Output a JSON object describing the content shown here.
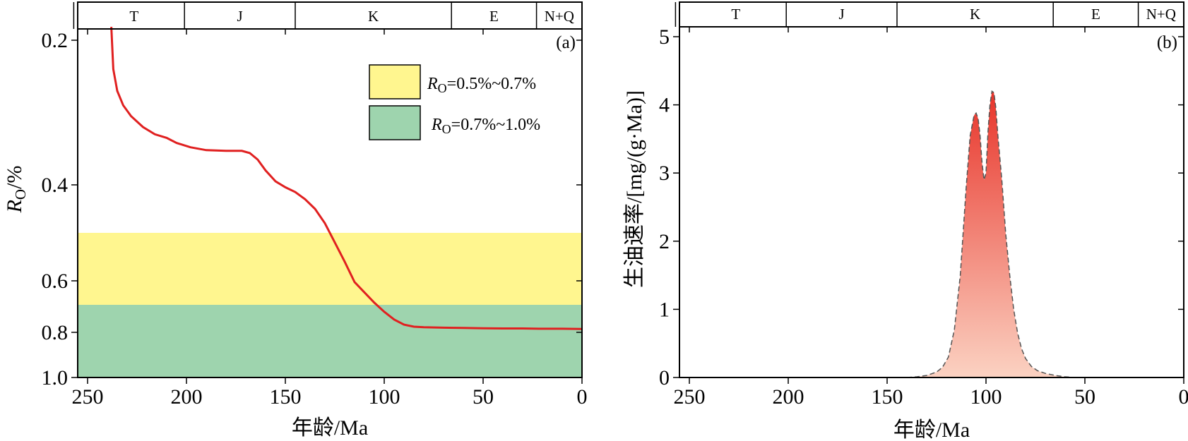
{
  "chart_data": [
    {
      "panel_label": "(a)",
      "type": "line",
      "xlabel": "年龄/Ma",
      "ylabel": "Ro/%",
      "ylabel_main": "R",
      "ylabel_sub": "O",
      "ylabel_rest": "/%",
      "xlim": [
        255,
        0
      ],
      "ylim_scale_positions": [
        [
          0.2,
          0.2
        ],
        [
          0.4,
          0.4
        ],
        [
          0.6,
          0.6
        ],
        [
          0.8,
          0.8
        ],
        [
          1.0,
          0.92
        ]
      ],
      "xticks": [
        250,
        200,
        150,
        100,
        50,
        0
      ],
      "xtick_labels": [
        "250",
        "200",
        "150",
        "100",
        "50",
        "0"
      ],
      "yticks": [
        0.2,
        0.4,
        0.6,
        0.8,
        1.0
      ],
      "ytick_labels": [
        "0.2",
        "0.4",
        "0.6",
        "0.8",
        "1.0"
      ],
      "periods": [
        {
          "label": "T",
          "start": 252,
          "end": 201
        },
        {
          "label": "J",
          "start": 201,
          "end": 145
        },
        {
          "label": "K",
          "start": 145,
          "end": 66
        },
        {
          "label": "E",
          "start": 66,
          "end": 23
        },
        {
          "label": "N+Q",
          "start": 23,
          "end": 0
        }
      ],
      "period_bar_left_edge": 257,
      "bands": [
        {
          "name": "Ro=0.5%~0.7%",
          "name_main": "R",
          "name_sub": "O",
          "name_rest": "=0.5%~0.7%",
          "y_from": 0.5,
          "y_to": 0.7,
          "color": "#fff68f"
        },
        {
          "name": "Ro=0.7%~1.0%",
          "name_main": "R",
          "name_sub": "O",
          "name_rest": "=0.7%~1.0%",
          "y_from": 0.7,
          "y_to": 1.0,
          "color": "#9ed4ae"
        }
      ],
      "line_color": "#e02020",
      "series": [
        {
          "x": [
            238,
            237,
            235,
            232,
            228,
            222,
            216,
            210,
            205,
            198,
            190,
            180,
            172,
            168,
            164,
            160,
            155,
            150,
            145,
            140,
            135,
            130,
            125,
            120,
            115,
            110,
            105,
            100,
            95,
            90,
            85,
            80,
            70,
            60,
            50,
            40,
            30,
            20,
            10,
            0
          ],
          "y": [
            0.18,
            0.24,
            0.27,
            0.29,
            0.305,
            0.32,
            0.33,
            0.335,
            0.342,
            0.348,
            0.352,
            0.353,
            0.353,
            0.356,
            0.365,
            0.38,
            0.395,
            0.405,
            0.415,
            0.43,
            0.45,
            0.48,
            0.52,
            0.56,
            0.605,
            0.645,
            0.685,
            0.72,
            0.75,
            0.77,
            0.778,
            0.78,
            0.782,
            0.783,
            0.784,
            0.785,
            0.785,
            0.786,
            0.786,
            0.787
          ]
        }
      ]
    },
    {
      "panel_label": "(b)",
      "type": "area",
      "xlabel": "年龄/Ma",
      "ylabel": "生油速率/[mg/(g·Ma)]",
      "xlim": [
        255,
        0
      ],
      "ylim": [
        0,
        5
      ],
      "xticks": [
        250,
        200,
        150,
        100,
        50,
        0
      ],
      "xtick_labels": [
        "250",
        "200",
        "150",
        "100",
        "50",
        "0"
      ],
      "yticks": [
        0,
        1,
        2,
        3,
        4,
        5
      ],
      "ytick_labels": [
        "0",
        "1",
        "2",
        "3",
        "4",
        "5"
      ],
      "periods": [
        {
          "label": "T",
          "start": 252,
          "end": 201
        },
        {
          "label": "J",
          "start": 201,
          "end": 145
        },
        {
          "label": "K",
          "start": 145,
          "end": 66
        },
        {
          "label": "E",
          "start": 66,
          "end": 23
        },
        {
          "label": "N+Q",
          "start": 23,
          "end": 0
        }
      ],
      "period_bar_left_edge": 257,
      "fill_top_color": "#e8342a",
      "fill_bottom_color": "#fbd2c2",
      "series": [
        {
          "x": [
            140,
            135,
            130,
            125,
            122,
            119,
            116,
            113,
            110,
            108,
            106,
            105,
            104,
            103,
            102,
            101,
            100,
            99,
            98,
            97,
            96,
            95,
            94,
            92,
            90,
            88,
            86,
            84,
            82,
            80,
            77,
            74,
            70,
            65,
            60,
            55
          ],
          "y": [
            0,
            0.01,
            0.03,
            0.08,
            0.15,
            0.3,
            0.7,
            1.5,
            2.8,
            3.55,
            3.85,
            3.88,
            3.8,
            3.55,
            3.15,
            2.9,
            3.0,
            3.6,
            4.0,
            4.2,
            4.18,
            3.95,
            3.55,
            2.9,
            2.1,
            1.5,
            1.0,
            0.65,
            0.42,
            0.28,
            0.16,
            0.1,
            0.06,
            0.03,
            0.01,
            0
          ]
        }
      ]
    }
  ]
}
